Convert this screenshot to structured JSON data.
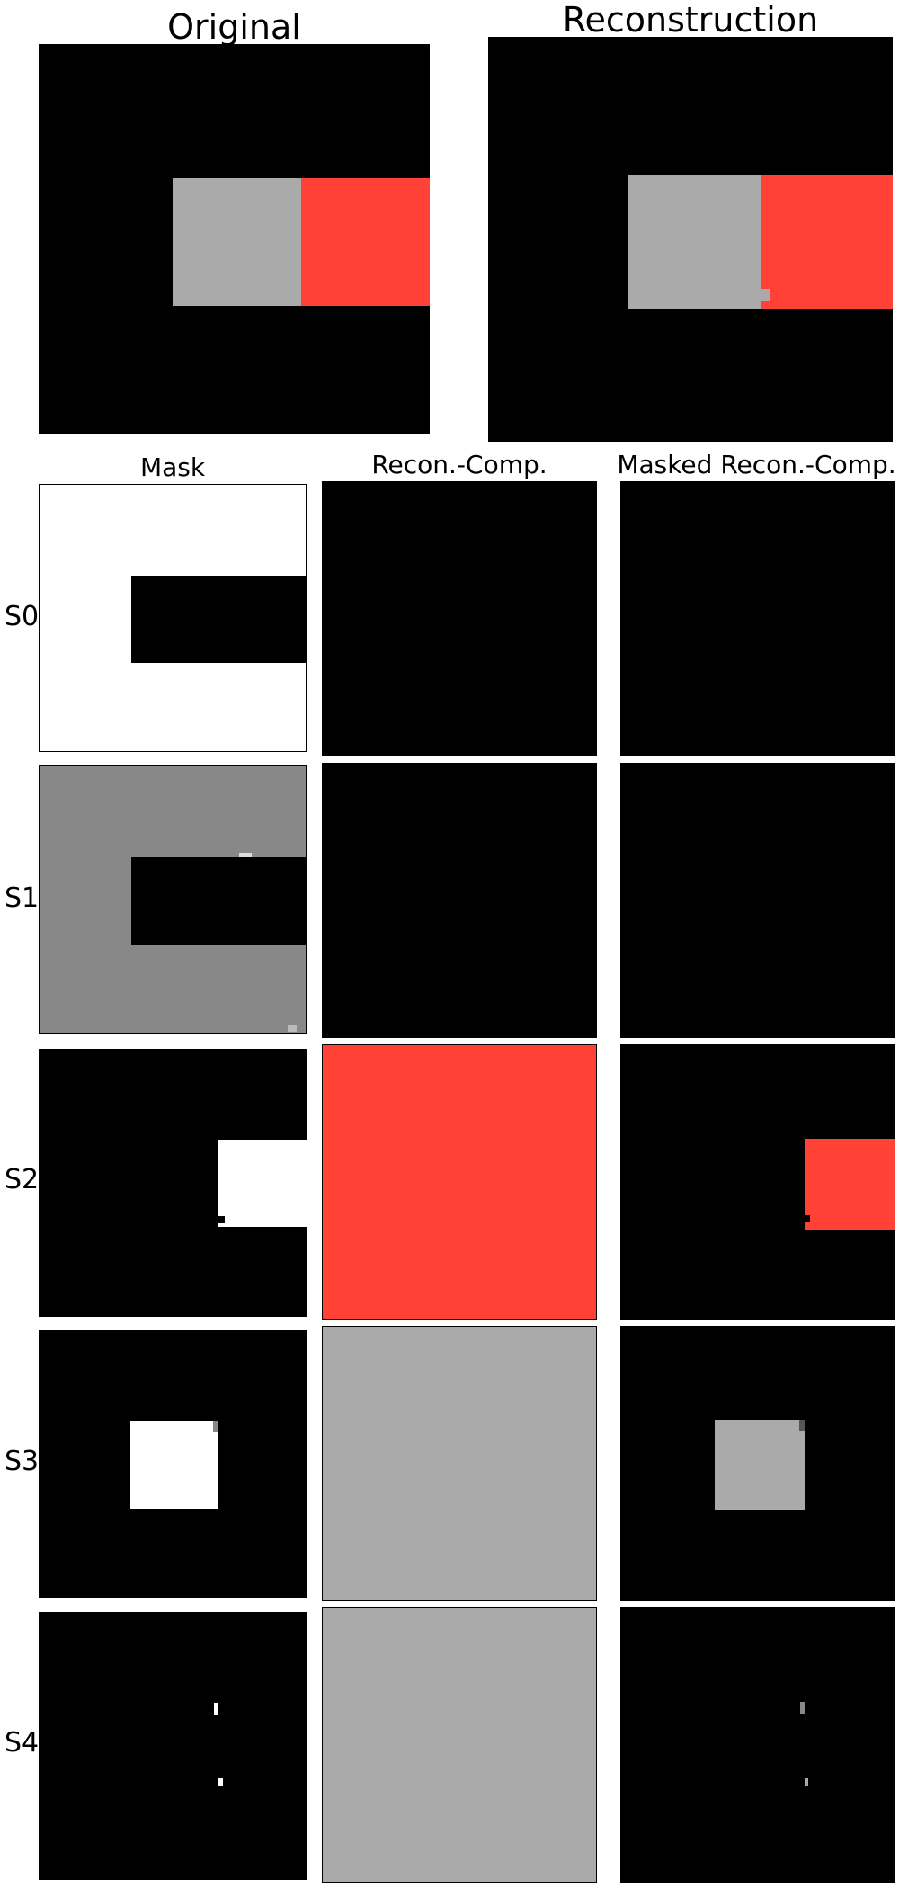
{
  "top_titles": {
    "original": "Original",
    "reconstruction": "Reconstruction"
  },
  "column_titles": {
    "mask": "Mask",
    "recon_comp": "Recon.-Comp.",
    "masked_recon_comp": "Masked Recon.-Comp."
  },
  "slots": [
    {
      "label": "S0",
      "mask_value": "white background with black rectangle (right-centre)",
      "component_color": "#000000"
    },
    {
      "label": "S1",
      "mask_value": "grey background with black rectangle (right-centre)",
      "component_color": "#000000"
    },
    {
      "label": "S2",
      "mask_value": "white square on right",
      "component_color": "#ff4136"
    },
    {
      "label": "S3",
      "mask_value": "white square in centre",
      "component_color": "#aaaaaa"
    },
    {
      "label": "S4",
      "mask_value": "two small specks",
      "component_color": "#aaaaaa"
    }
  ],
  "colors": {
    "background": "#000000",
    "grey_object": "#aaaaaa",
    "red_object": "#ff4136",
    "mask_white": "#ffffff",
    "mask_grey": "#888888"
  }
}
